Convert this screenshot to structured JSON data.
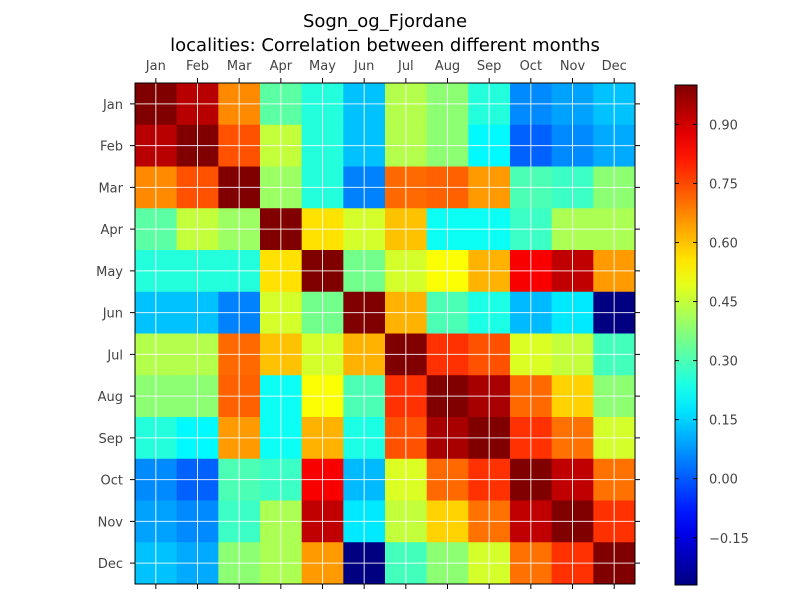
{
  "chart_data": {
    "type": "heatmap",
    "title": [
      "Sogn_og_Fjordane",
      "localities: Correlation between different months"
    ],
    "xlabel": "",
    "ylabel": "",
    "x_categories": [
      "Jan",
      "Feb",
      "Mar",
      "Apr",
      "May",
      "Jun",
      "Jul",
      "Aug",
      "Sep",
      "Oct",
      "Nov",
      "Dec"
    ],
    "y_categories": [
      "Jan",
      "Feb",
      "Mar",
      "Apr",
      "May",
      "Jun",
      "Jul",
      "Aug",
      "Sep",
      "Oct",
      "Nov",
      "Dec"
    ],
    "x_axis_position": "top",
    "grid": true,
    "colormap": "jet",
    "vmin": -0.27,
    "vmax": 1.0,
    "colorbar": {
      "position": "right",
      "ticks": [
        -0.15,
        0.0,
        0.15,
        0.3,
        0.45,
        0.6,
        0.75,
        0.9
      ],
      "tick_labels": [
        "−0.15",
        "0.00",
        "0.15",
        "0.30",
        "0.45",
        "0.60",
        "0.75",
        "0.90"
      ]
    },
    "values": [
      [
        1.0,
        0.93,
        0.67,
        0.32,
        0.25,
        0.13,
        0.43,
        0.38,
        0.25,
        0.06,
        0.09,
        0.13
      ],
      [
        0.93,
        1.0,
        0.74,
        0.45,
        0.25,
        0.13,
        0.43,
        0.38,
        0.2,
        0.01,
        0.06,
        0.1
      ],
      [
        0.67,
        0.74,
        1.0,
        0.4,
        0.25,
        0.05,
        0.71,
        0.72,
        0.65,
        0.3,
        0.28,
        0.38
      ],
      [
        0.32,
        0.45,
        0.4,
        1.0,
        0.56,
        0.47,
        0.6,
        0.22,
        0.22,
        0.28,
        0.42,
        0.42
      ],
      [
        0.25,
        0.25,
        0.25,
        0.56,
        1.0,
        0.35,
        0.47,
        0.52,
        0.62,
        0.85,
        0.92,
        0.65
      ],
      [
        0.13,
        0.13,
        0.05,
        0.47,
        0.35,
        1.0,
        0.62,
        0.3,
        0.24,
        0.12,
        0.18,
        -0.27
      ],
      [
        0.43,
        0.43,
        0.71,
        0.6,
        0.47,
        0.62,
        1.0,
        0.78,
        0.74,
        0.48,
        0.45,
        0.29
      ],
      [
        0.38,
        0.38,
        0.72,
        0.22,
        0.52,
        0.3,
        0.78,
        1.0,
        0.95,
        0.71,
        0.58,
        0.38
      ],
      [
        0.25,
        0.2,
        0.65,
        0.22,
        0.62,
        0.24,
        0.74,
        0.95,
        1.0,
        0.78,
        0.7,
        0.47
      ],
      [
        0.06,
        0.01,
        0.3,
        0.28,
        0.85,
        0.12,
        0.48,
        0.71,
        0.78,
        1.0,
        0.92,
        0.7
      ],
      [
        0.09,
        0.06,
        0.28,
        0.42,
        0.92,
        0.18,
        0.45,
        0.58,
        0.7,
        0.92,
        1.0,
        0.78
      ],
      [
        0.13,
        0.1,
        0.38,
        0.42,
        0.65,
        -0.27,
        0.29,
        0.38,
        0.47,
        0.7,
        0.78,
        1.0
      ]
    ]
  }
}
